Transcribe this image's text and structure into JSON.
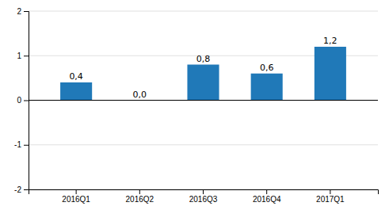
{
  "chart_data": {
    "type": "bar",
    "categories": [
      "2016Q1",
      "2016Q2",
      "2016Q3",
      "2016Q4",
      "2017Q1"
    ],
    "values": [
      0.4,
      0.0,
      0.8,
      0.6,
      1.2
    ],
    "value_labels": [
      "0,4",
      "0,0",
      "0,8",
      "0,6",
      "1,2"
    ],
    "data_labels": true,
    "color": "#2079b8",
    "ylim": [
      -2,
      2
    ],
    "yticks": [
      -2,
      -1,
      0,
      1,
      2
    ],
    "grid": true
  }
}
